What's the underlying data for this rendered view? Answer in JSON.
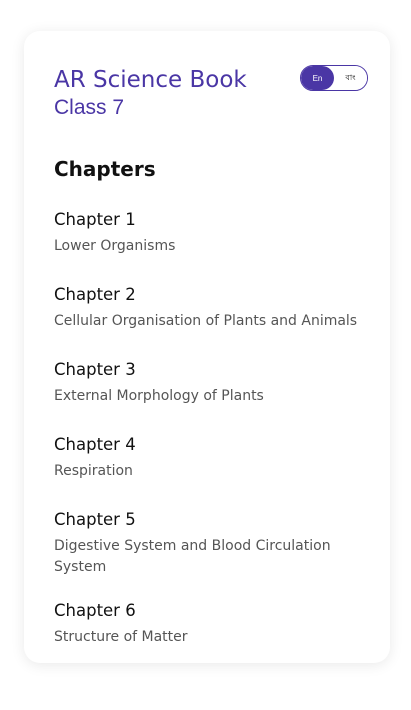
{
  "header": {
    "title": "AR Science Book",
    "subtitle": "Class 7"
  },
  "language_toggle": {
    "options": [
      "En",
      "বাং"
    ],
    "selected": "En",
    "accent_color": "#4a36a5"
  },
  "section": {
    "title": "Chapters"
  },
  "chapters": [
    {
      "number": "Chapter 1",
      "name": "Lower Organisms"
    },
    {
      "number": "Chapter 2",
      "name": "Cellular Organisation of Plants and Animals"
    },
    {
      "number": "Chapter 3",
      "name": "External Morphology of Plants"
    },
    {
      "number": "Chapter 4",
      "name": "Respiration"
    },
    {
      "number": "Chapter 5",
      "name": "Digestive System and Blood Circulation System"
    },
    {
      "number": "Chapter 6",
      "name": "Structure of Matter"
    }
  ]
}
